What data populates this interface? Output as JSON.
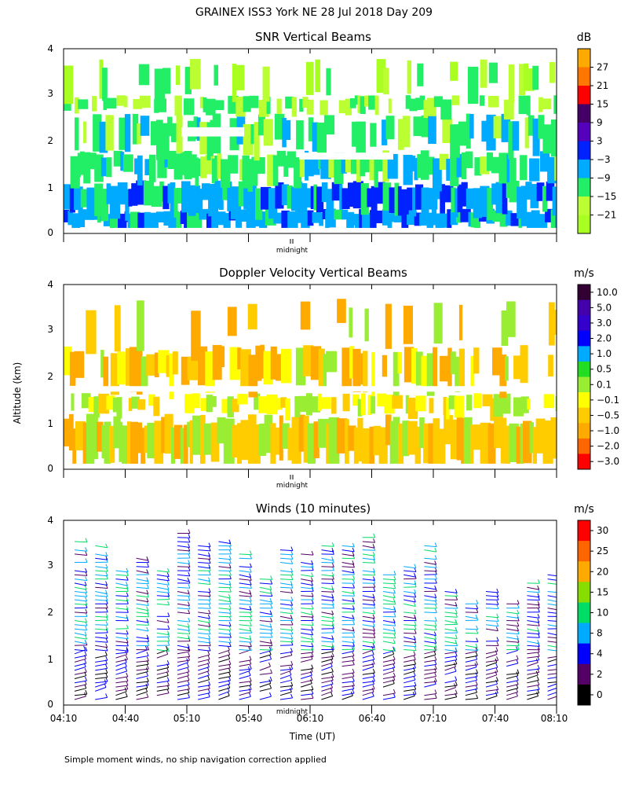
{
  "figure": {
    "title": "GRAINEX ISS3 York NE  28 Jul 2018 Day 209",
    "ylabel": "Altitude (km)",
    "xlabel": "Time (UT)",
    "footnote": "Simple moment winds, no ship navigation correction applied",
    "midnight_label": "midnight"
  },
  "chart_data": [
    {
      "type": "heatmap",
      "title": "SNR Vertical Beams",
      "xlabel": "",
      "ylabel": "Altitude (km)",
      "xlim": [
        "04:10",
        "08:10"
      ],
      "ylim": [
        0,
        4
      ],
      "yticks": [
        "0",
        "1",
        "2",
        "3",
        "4"
      ],
      "colorbar": {
        "unit": "dB",
        "labels": [
          "27",
          "21",
          "15",
          "9",
          "3",
          "−3",
          "−9",
          "−15",
          "−21"
        ],
        "colors": [
          "#ffaa00",
          "#ff7700",
          "#ff0000",
          "#440066",
          "#5500bb",
          "#0022ff",
          "#00aaff",
          "#22ee66",
          "#bbff33",
          "#aaff22"
        ]
      },
      "layers": [
        {
          "from_km": 0.1,
          "to_km": 0.5,
          "dominant_db": -9
        },
        {
          "from_km": 0.5,
          "to_km": 1.2,
          "dominant_db": -6
        },
        {
          "from_km": 1.2,
          "to_km": 1.8,
          "dominant_db": -15
        },
        {
          "from_km": 1.8,
          "to_km": 2.6,
          "dominant_db": -12
        },
        {
          "from_km": 2.8,
          "to_km": 3.8,
          "dominant_db": -21
        }
      ]
    },
    {
      "type": "heatmap",
      "title": "Doppler Velocity Vertical Beams",
      "xlabel": "",
      "ylabel": "Altitude (km)",
      "xlim": [
        "04:10",
        "08:10"
      ],
      "ylim": [
        0,
        4
      ],
      "yticks": [
        "0",
        "1",
        "2",
        "3",
        "4"
      ],
      "colorbar": {
        "unit": "m/s",
        "labels": [
          "10.0",
          "5.0",
          "3.0",
          "2.0",
          "1.0",
          "0.5",
          "0.1",
          "−0.1",
          "−0.5",
          "−1.0",
          "−2.0",
          "−3.0"
        ],
        "colors": [
          "#330033",
          "#4400aa",
          "#3300cc",
          "#0000ff",
          "#00aaff",
          "#22dd22",
          "#99ee33",
          "#ffff00",
          "#ffcc00",
          "#ffaa00",
          "#ff6600",
          "#ff0000"
        ]
      },
      "layers": [
        {
          "from_km": 0.1,
          "to_km": 1.2,
          "dominant_ms": -0.5
        },
        {
          "from_km": 1.2,
          "to_km": 1.7,
          "dominant_ms": -0.1
        },
        {
          "from_km": 1.8,
          "to_km": 2.7,
          "dominant_ms": 0.1
        },
        {
          "from_km": 2.7,
          "to_km": 3.7,
          "dominant_ms": -0.5
        }
      ]
    },
    {
      "type": "scatter",
      "title": "Winds (10 minutes)",
      "xlabel": "Time (UT)",
      "ylabel": "Altitude (km)",
      "xlim": [
        "04:10",
        "08:10"
      ],
      "ylim": [
        0,
        4
      ],
      "xticks": [
        "04:10",
        "04:40",
        "05:10",
        "05:40",
        "06:10",
        "06:40",
        "07:10",
        "07:40",
        "08:10"
      ],
      "yticks": [
        "0",
        "1",
        "2",
        "3",
        "4"
      ],
      "colorbar": {
        "unit": "m/s",
        "labels": [
          "30",
          "25",
          "20",
          "15",
          "10",
          "8",
          "4",
          "2",
          "0"
        ],
        "colors": [
          "#ff0000",
          "#ff6600",
          "#ffaa00",
          "#88dd00",
          "#00dd66",
          "#00aaff",
          "#0000ff",
          "#550066",
          "#000000"
        ]
      },
      "interval_min": 10,
      "profiles_every_min": 10
    }
  ]
}
